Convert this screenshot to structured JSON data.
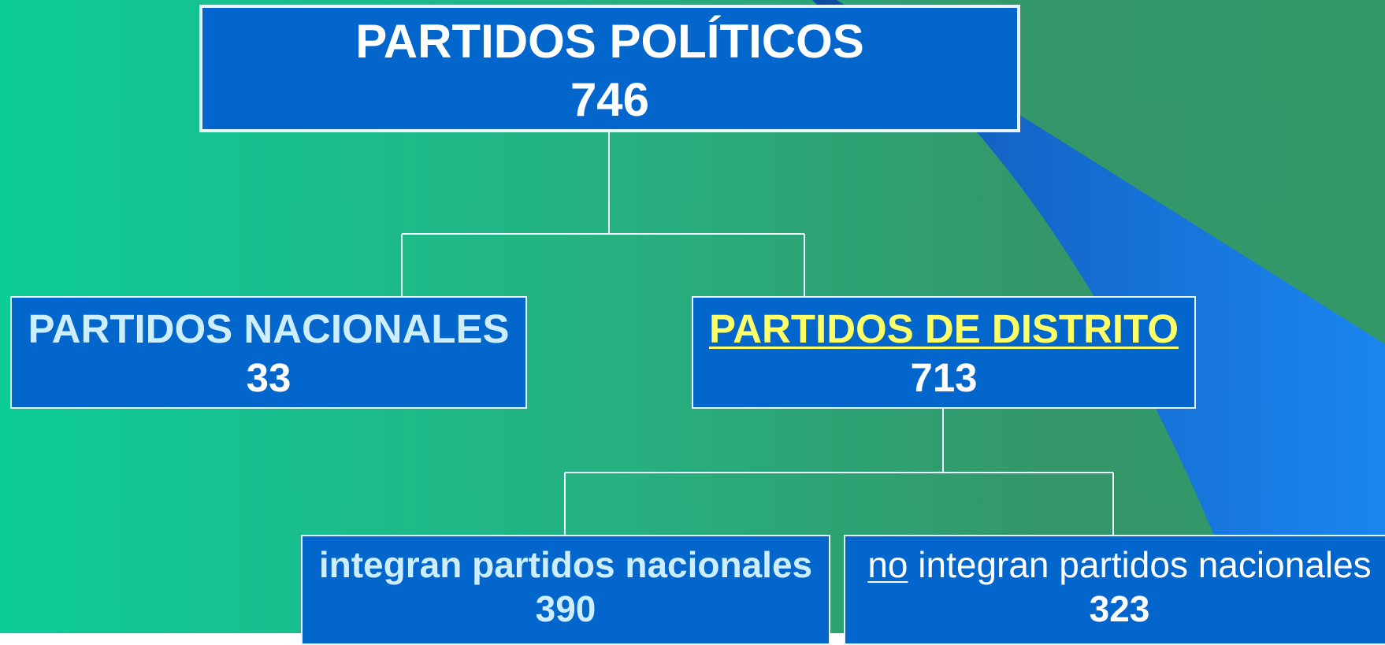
{
  "nodes": [
    {
      "label": "PARTIDOS POLÍTICOS",
      "value": 746
    },
    {
      "label": "PARTIDOS NACIONALES",
      "value": 33
    },
    {
      "label": "PARTIDOS DE DISTRITO",
      "value": 713
    },
    {
      "label": "integran partidos nacionales",
      "value": 390
    },
    {
      "label_parts": [
        "no",
        "integran partidos nacionales"
      ],
      "value": 323
    }
  ]
}
